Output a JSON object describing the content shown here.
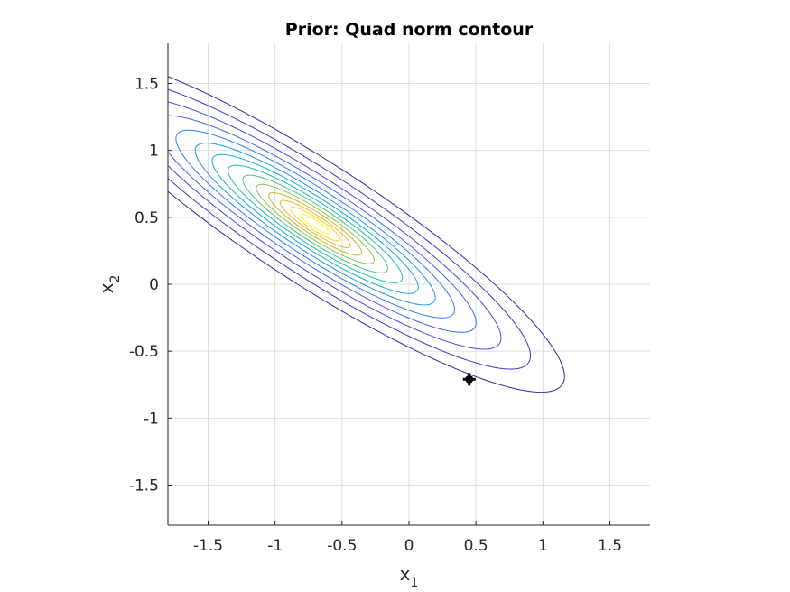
{
  "chart_data": {
    "type": "contour",
    "title": "Prior: Quad norm contour",
    "xlabel": "x",
    "xlabel_sub": "1",
    "ylabel": "x",
    "ylabel_sub": "2",
    "xlim": [
      -1.8,
      1.8
    ],
    "ylim": [
      -1.8,
      1.8
    ],
    "xticks": [
      -1.5,
      -1,
      -0.5,
      0,
      0.5,
      1,
      1.5
    ],
    "yticks": [
      -1.5,
      -1,
      -0.5,
      0,
      0.5,
      1,
      1.5
    ],
    "xtick_labels": [
      "-1.5",
      "-1",
      "-0.5",
      "0",
      "0.5",
      "1",
      "1.5"
    ],
    "ytick_labels": [
      "-1.5",
      "-1",
      "-0.5",
      "0",
      "0.5",
      "1",
      "1.5"
    ],
    "grid": true,
    "box": false,
    "contour_center": [
      -0.7,
      0.45
    ],
    "contour_rotation_deg": -33,
    "contour_levels": [
      {
        "a": 2.2,
        "b": 0.45,
        "color": "#3d26a8"
      },
      {
        "a": 1.9,
        "b": 0.385,
        "color": "#4433c9"
      },
      {
        "a": 1.64,
        "b": 0.33,
        "color": "#4749e5"
      },
      {
        "a": 1.42,
        "b": 0.285,
        "color": "#3e62f5"
      },
      {
        "a": 1.23,
        "b": 0.247,
        "color": "#2f7bf3"
      },
      {
        "a": 1.06,
        "b": 0.213,
        "color": "#2196e0"
      },
      {
        "a": 0.91,
        "b": 0.183,
        "color": "#12aed0"
      },
      {
        "a": 0.77,
        "b": 0.155,
        "color": "#1fbbaa"
      },
      {
        "a": 0.64,
        "b": 0.129,
        "color": "#4cc47e"
      },
      {
        "a": 0.52,
        "b": 0.105,
        "color": "#8ac452"
      },
      {
        "a": 0.41,
        "b": 0.083,
        "color": "#c2bb36"
      },
      {
        "a": 0.31,
        "b": 0.063,
        "color": "#f0b72f"
      },
      {
        "a": 0.22,
        "b": 0.045,
        "color": "#fad824"
      },
      {
        "a": 0.13,
        "b": 0.027,
        "color": "#f9fb15"
      }
    ],
    "marker": {
      "x": 0.45,
      "y": -0.71,
      "color": "#000000"
    }
  }
}
